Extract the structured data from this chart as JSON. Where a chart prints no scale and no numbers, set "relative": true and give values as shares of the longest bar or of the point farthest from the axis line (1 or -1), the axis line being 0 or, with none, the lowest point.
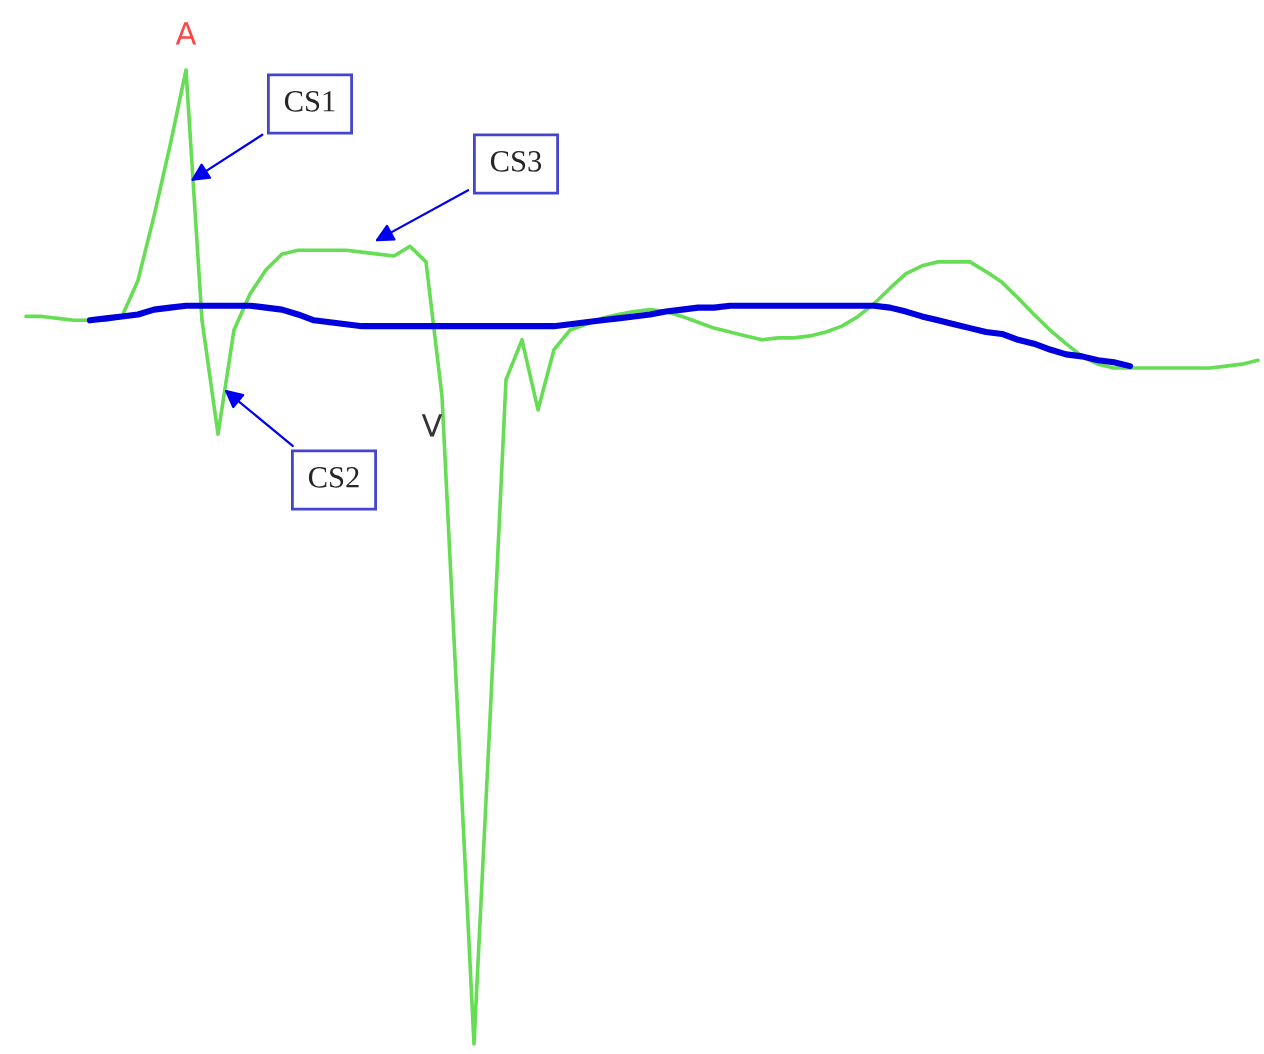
{
  "chart_data": {
    "type": "line",
    "relative": true,
    "line_style": "solid",
    "categories": [
      null,
      null,
      null,
      null,
      null,
      null,
      null,
      null,
      null,
      null,
      null,
      null,
      null,
      null,
      null,
      null,
      null,
      null,
      null,
      null,
      null,
      null,
      null,
      null,
      null,
      null,
      null,
      null,
      null,
      null,
      null,
      null,
      null,
      null,
      null,
      null,
      null,
      null,
      null,
      null,
      null,
      null,
      null,
      null,
      null,
      null,
      null,
      null,
      null,
      null,
      null,
      null,
      null,
      null,
      null,
      null,
      null,
      null,
      null,
      null,
      null,
      null,
      null,
      null,
      null,
      null,
      null,
      null,
      null,
      null,
      null,
      null,
      null,
      null,
      null,
      null,
      null,
      null,
      null
    ],
    "series": [
      {
        "color": "#66dd55",
        "values": [
          null,
          0.747,
          0.747,
          0.745,
          0.743,
          0.743,
          0.743,
          0.747,
          0.784,
          0.85,
          0.922,
          1,
          0.743,
          0.626,
          0.733,
          0.77,
          0.795,
          0.811,
          0.815,
          0.815,
          0.815,
          0.815,
          0.813,
          0.811,
          0.809,
          0.819,
          0.803,
          0.665,
          0.333,
          0,
          0.333,
          0.682,
          0.723,
          0.651,
          0.713,
          0.733,
          0.739,
          0.745,
          0.749,
          0.752,
          0.754,
          0.752,
          0.747,
          0.741,
          0.735,
          0.731,
          0.727,
          0.723,
          0.725,
          0.725,
          0.727,
          0.731,
          0.737,
          0.747,
          0.76,
          0.776,
          0.791,
          0.799,
          0.803,
          0.803,
          0.803,
          0.793,
          0.782,
          0.766,
          0.749,
          0.733,
          0.719,
          0.706,
          0.698,
          0.694,
          0.694,
          0.694,
          0.694,
          0.694,
          0.694,
          0.694,
          0.696,
          0.698,
          0.702
        ]
      },
      {
        "color": "#0000dd",
        "values": [
          null,
          null,
          null,
          null,
          null,
          0.743,
          0.745,
          0.747,
          0.749,
          0.754,
          0.756,
          0.758,
          0.758,
          0.758,
          0.758,
          0.758,
          0.756,
          0.754,
          0.749,
          0.743,
          0.741,
          0.739,
          0.737,
          0.737,
          0.737,
          0.737,
          0.737,
          0.737,
          0.737,
          0.737,
          0.737,
          0.737,
          0.737,
          0.737,
          0.737,
          0.739,
          0.741,
          0.743,
          0.745,
          0.747,
          0.749,
          0.752,
          0.754,
          0.756,
          0.756,
          0.758,
          0.758,
          0.758,
          0.758,
          0.758,
          0.758,
          0.758,
          0.758,
          0.758,
          0.758,
          0.756,
          0.752,
          0.747,
          0.743,
          0.739,
          0.735,
          0.731,
          0.729,
          0.723,
          0.719,
          0.713,
          0.708,
          0.706,
          0.702,
          0.7,
          0.696,
          null,
          null,
          null,
          null,
          null,
          null,
          null,
          null
        ]
      }
    ],
    "annotations": [
      "A",
      "V",
      "CS1",
      "CS2",
      "CS3"
    ]
  }
}
